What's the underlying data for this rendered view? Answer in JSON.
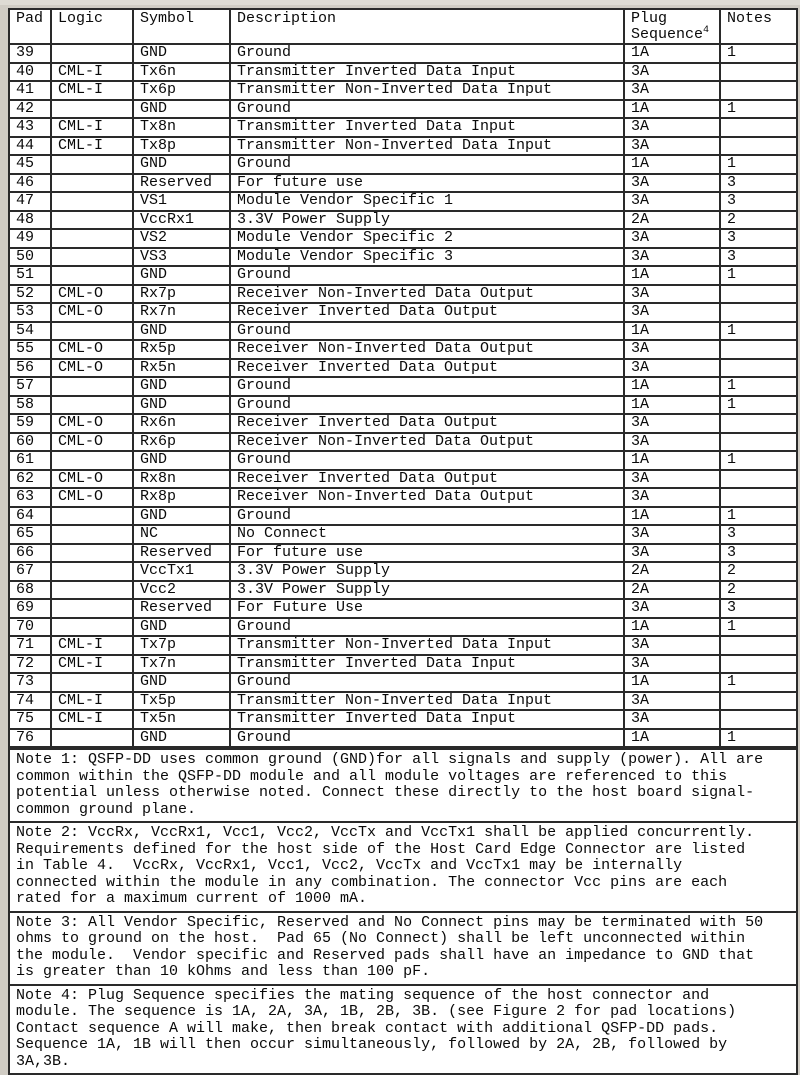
{
  "page": {
    "background_color": "#d0ccc4",
    "table_background_color": "#ffffff",
    "border_color": "#2a2a2a",
    "text_color": "#0a0a0a"
  },
  "table": {
    "headers": {
      "pad": "Pad",
      "logic": "Logic",
      "symbol": "Symbol",
      "description": "Description",
      "plug_line1": "Plug",
      "plug_line2": "Sequence",
      "plug_footnote_ref": "4",
      "notes": "Notes"
    },
    "rows": [
      [
        "39",
        "",
        "GND",
        "Ground",
        "1A",
        "1"
      ],
      [
        "40",
        "CML-I",
        "Tx6n",
        "Transmitter Inverted Data Input",
        "3A",
        ""
      ],
      [
        "41",
        "CML-I",
        "Tx6p",
        "Transmitter Non-Inverted Data Input",
        "3A",
        ""
      ],
      [
        "42",
        "",
        "GND",
        "Ground",
        "1A",
        "1"
      ],
      [
        "43",
        "CML-I",
        "Tx8n",
        "Transmitter Inverted Data Input",
        "3A",
        ""
      ],
      [
        "44",
        "CML-I",
        "Tx8p",
        "Transmitter Non-Inverted Data Input",
        "3A",
        ""
      ],
      [
        "45",
        "",
        "GND",
        "Ground",
        "1A",
        "1"
      ],
      [
        "46",
        "",
        "Reserved",
        "For future use",
        "3A",
        "3"
      ],
      [
        "47",
        "",
        "VS1",
        "Module Vendor Specific 1",
        "3A",
        "3"
      ],
      [
        "48",
        "",
        "VccRx1",
        "3.3V Power Supply",
        "2A",
        "2"
      ],
      [
        "49",
        "",
        "VS2",
        "Module Vendor Specific 2",
        "3A",
        "3"
      ],
      [
        "50",
        "",
        "VS3",
        "Module Vendor Specific 3",
        "3A",
        "3"
      ],
      [
        "51",
        "",
        "GND",
        "Ground",
        "1A",
        "1"
      ],
      [
        "52",
        "CML-O",
        "Rx7p",
        "Receiver Non-Inverted Data Output",
        "3A",
        ""
      ],
      [
        "53",
        "CML-O",
        "Rx7n",
        "Receiver Inverted Data Output",
        "3A",
        ""
      ],
      [
        "54",
        "",
        "GND",
        "Ground",
        "1A",
        "1"
      ],
      [
        "55",
        "CML-O",
        "Rx5p",
        "Receiver Non-Inverted Data Output",
        "3A",
        ""
      ],
      [
        "56",
        "CML-O",
        "Rx5n",
        "Receiver Inverted Data Output",
        "3A",
        ""
      ],
      [
        "57",
        "",
        "GND",
        "Ground",
        "1A",
        "1"
      ],
      [
        "58",
        "",
        "GND",
        "Ground",
        "1A",
        "1"
      ],
      [
        "59",
        "CML-O",
        "Rx6n",
        "Receiver Inverted Data Output",
        "3A",
        ""
      ],
      [
        "60",
        "CML-O",
        "Rx6p",
        "Receiver Non-Inverted Data Output",
        "3A",
        ""
      ],
      [
        "61",
        "",
        "GND",
        "Ground",
        "1A",
        "1"
      ],
      [
        "62",
        "CML-O",
        "Rx8n",
        "Receiver Inverted Data Output",
        "3A",
        ""
      ],
      [
        "63",
        "CML-O",
        "Rx8p",
        "Receiver Non-Inverted Data Output",
        "3A",
        ""
      ],
      [
        "64",
        "",
        "GND",
        "Ground",
        "1A",
        "1"
      ],
      [
        "65",
        "",
        "NC",
        "No Connect",
        "3A",
        "3"
      ],
      [
        "66",
        "",
        "Reserved",
        "For future use",
        "3A",
        "3"
      ],
      [
        "67",
        "",
        "VccTx1",
        "3.3V Power Supply",
        "2A",
        "2"
      ],
      [
        "68",
        "",
        "Vcc2",
        "3.3V Power Supply",
        "2A",
        "2"
      ],
      [
        "69",
        "",
        "Reserved",
        "For Future Use",
        "3A",
        "3"
      ],
      [
        "70",
        "",
        "GND",
        "Ground",
        "1A",
        "1"
      ],
      [
        "71",
        "CML-I",
        "Tx7p",
        "Transmitter Non-Inverted Data Input",
        "3A",
        ""
      ],
      [
        "72",
        "CML-I",
        "Tx7n",
        "Transmitter Inverted Data Input",
        "3A",
        ""
      ],
      [
        "73",
        "",
        "GND",
        "Ground",
        "1A",
        "1"
      ],
      [
        "74",
        "CML-I",
        "Tx5p",
        "Transmitter Non-Inverted Data Input",
        "3A",
        ""
      ],
      [
        "75",
        "CML-I",
        "Tx5n",
        "Transmitter Inverted Data Input",
        "3A",
        ""
      ],
      [
        "76",
        "",
        "GND",
        "Ground",
        "1A",
        "1"
      ]
    ],
    "footnotes": [
      "Note 1: QSFP-DD uses common ground (GND)for all signals and supply (power). All are\ncommon within the QSFP-DD module and all module voltages are referenced to this\npotential unless otherwise noted. Connect these directly to the host board signal-\ncommon ground plane.",
      "Note 2: VccRx, VccRx1, Vcc1, Vcc2, VccTx and VccTx1 shall be applied concurrently.\nRequirements defined for the host side of the Host Card Edge Connector are listed\nin Table 4.  VccRx, VccRx1, Vcc1, Vcc2, VccTx and VccTx1 may be internally\nconnected within the module in any combination. The connector Vcc pins are each\nrated for a maximum current of 1000 mA.",
      "Note 3: All Vendor Specific, Reserved and No Connect pins may be terminated with 50\nohms to ground on the host.  Pad 65 (No Connect) shall be left unconnected within\nthe module.  Vendor specific and Reserved pads shall have an impedance to GND that\nis greater than 10 kOhms and less than 100 pF.",
      "Note 4: Plug Sequence specifies the mating sequence of the host connector and\nmodule. The sequence is 1A, 2A, 3A, 1B, 2B, 3B. (see Figure 2 for pad locations)\nContact sequence A will make, then break contact with additional QSFP-DD pads.\nSequence 1A, 1B will then occur simultaneously, followed by 2A, 2B, followed by\n3A,3B."
    ]
  }
}
